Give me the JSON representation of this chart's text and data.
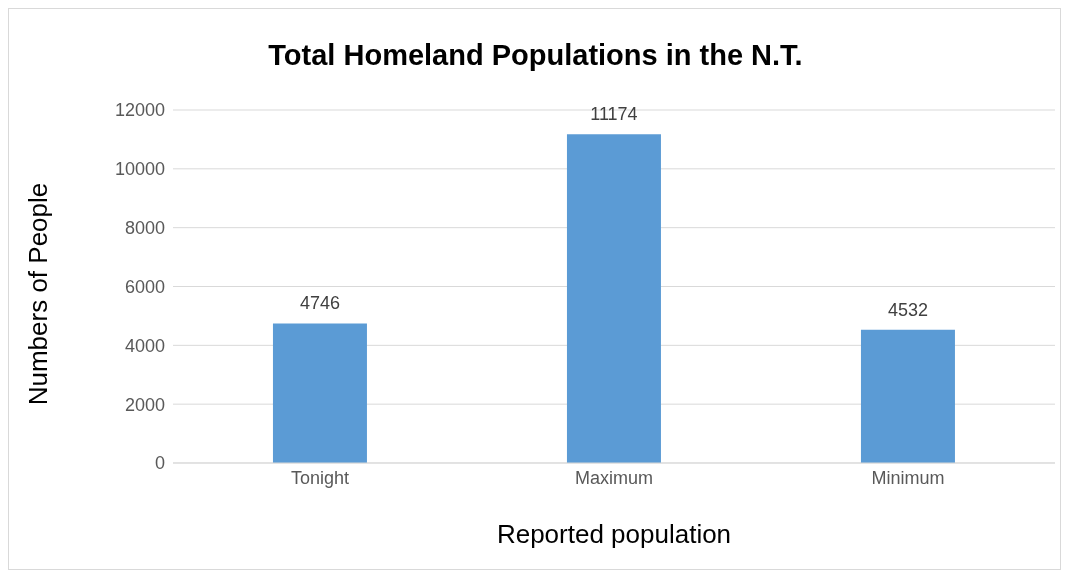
{
  "chart_data": {
    "type": "bar",
    "title": "Total Homeland Populations in the N.T.",
    "xlabel": "Reported population",
    "ylabel": "Numbers of People",
    "categories": [
      "Tonight",
      "Maximum",
      "Minimum"
    ],
    "values": [
      4746,
      11174,
      4532
    ],
    "color": "#5b9bd5",
    "ylim": [
      0,
      12000
    ],
    "yticks": [
      0,
      2000,
      4000,
      6000,
      8000,
      10000,
      12000
    ],
    "grid": "y",
    "data_labels": true,
    "legend": false
  }
}
